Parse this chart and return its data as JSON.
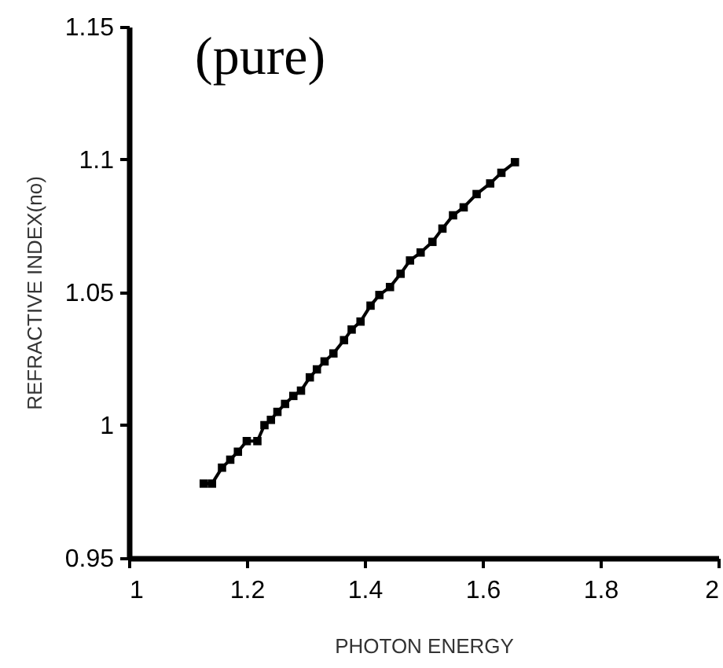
{
  "chart_data": {
    "type": "line",
    "xlabel": "PHOTON ENERGY",
    "ylabel": "REFRACTIVE INDEX(no)",
    "annotations": [
      "(pure)"
    ],
    "x": [
      1.127,
      1.141,
      1.158,
      1.172,
      1.185,
      1.2,
      1.218,
      1.23,
      1.241,
      1.252,
      1.265,
      1.279,
      1.292,
      1.307,
      1.319,
      1.332,
      1.347,
      1.365,
      1.378,
      1.393,
      1.41,
      1.425,
      1.443,
      1.461,
      1.477,
      1.495,
      1.515,
      1.532,
      1.55,
      1.568,
      1.59,
      1.613,
      1.632,
      1.655
    ],
    "series": [
      {
        "color": "#000000",
        "values": [
          0.978,
          0.978,
          0.984,
          0.987,
          0.99,
          0.994,
          0.994,
          1.0,
          1.002,
          1.005,
          1.008,
          1.011,
          1.013,
          1.018,
          1.021,
          1.024,
          1.027,
          1.032,
          1.036,
          1.039,
          1.045,
          1.049,
          1.052,
          1.057,
          1.062,
          1.065,
          1.069,
          1.074,
          1.079,
          1.082,
          1.087,
          1.091,
          1.095,
          1.099
        ]
      }
    ],
    "xlim": [
      1,
      2
    ],
    "xticks": [
      1,
      1.2,
      1.4,
      1.6,
      1.8,
      2
    ],
    "ylim": [
      0.95,
      1.15
    ],
    "yticks": [
      0.95,
      1,
      1.05,
      1.1,
      1.15
    ],
    "grid": false,
    "marker": "square",
    "line_style": "solid"
  }
}
